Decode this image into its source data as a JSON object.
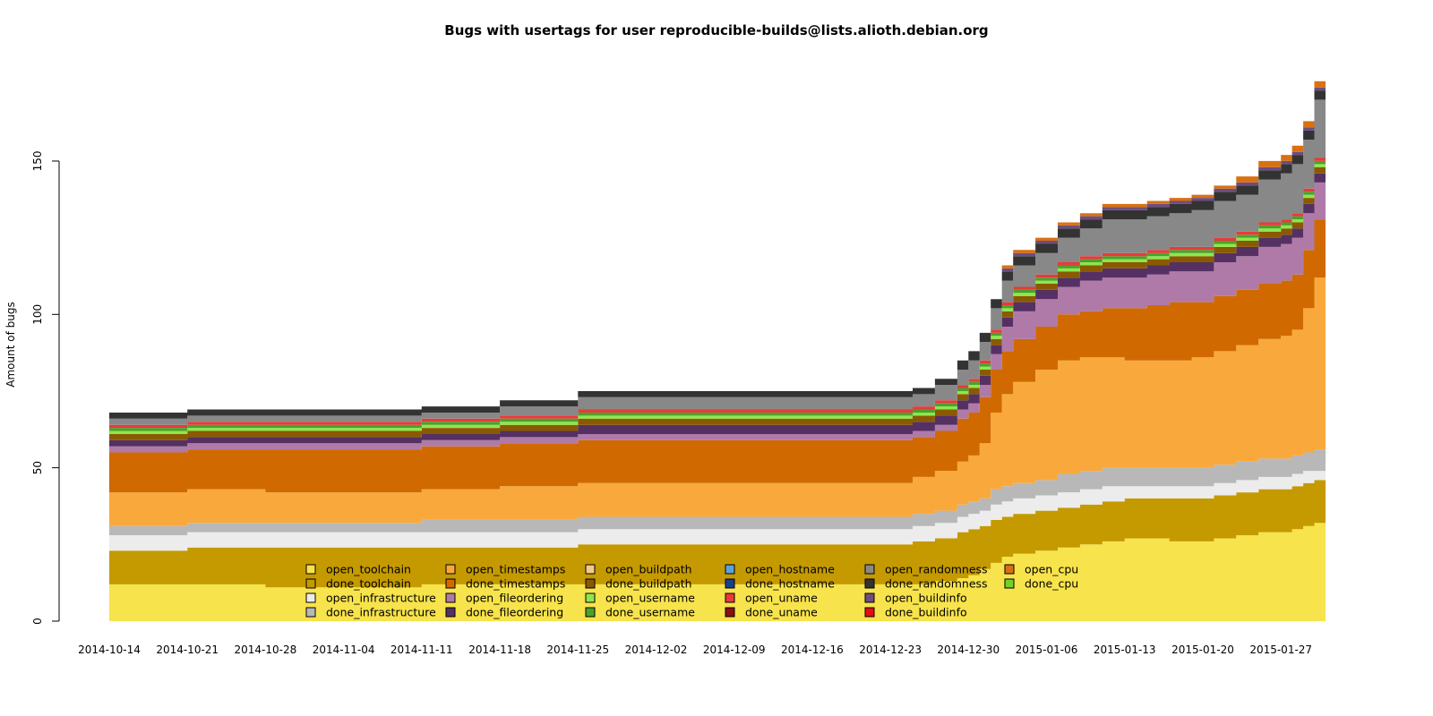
{
  "chart_data": {
    "type": "area",
    "title": "Bugs with usertags for user reproducible-builds@lists.alioth.debian.org",
    "xlabel": "",
    "ylabel": "Amount of bugs",
    "ylim": [
      0,
      185
    ],
    "y_ticks": [
      0,
      50,
      100,
      150
    ],
    "x_tick_labels": [
      "2014-10-14",
      "2014-10-21",
      "2014-10-28",
      "2014-11-04",
      "2014-11-11",
      "2014-11-18",
      "2014-11-25",
      "2014-12-02",
      "2014-12-09",
      "2014-12-16",
      "2014-12-23",
      "2014-12-30",
      "2015-01-06",
      "2015-01-13",
      "2015-01-20",
      "2015-01-27"
    ],
    "grid": false,
    "legend_position": "bottom-center",
    "x": [
      "2014-10-14",
      "2014-10-21",
      "2014-10-28",
      "2014-11-04",
      "2014-11-11",
      "2014-11-18",
      "2014-11-25",
      "2014-12-02",
      "2014-12-09",
      "2014-12-16",
      "2014-12-23",
      "2014-12-25",
      "2014-12-27",
      "2014-12-29",
      "2014-12-30",
      "2014-12-31",
      "2015-01-01",
      "2015-01-02",
      "2015-01-03",
      "2015-01-05",
      "2015-01-07",
      "2015-01-09",
      "2015-01-11",
      "2015-01-13",
      "2015-01-15",
      "2015-01-17",
      "2015-01-19",
      "2015-01-21",
      "2015-01-23",
      "2015-01-25",
      "2015-01-27",
      "2015-01-28",
      "2015-01-29",
      "2015-01-30"
    ],
    "series": [
      {
        "name": "open_toolchain",
        "color": "#f7e34b",
        "values": [
          12,
          12,
          11,
          11,
          12,
          12,
          12,
          12,
          12,
          12,
          12,
          12,
          13,
          14,
          15,
          17,
          19,
          21,
          22,
          23,
          24,
          25,
          26,
          27,
          27,
          26,
          26,
          27,
          28,
          29,
          29,
          30,
          31,
          32
        ]
      },
      {
        "name": "done_toolchain",
        "color": "#c49a00",
        "values": [
          11,
          12,
          13,
          13,
          12,
          12,
          13,
          13,
          13,
          13,
          13,
          14,
          14,
          15,
          15,
          14,
          14,
          13,
          13,
          13,
          13,
          13,
          13,
          13,
          13,
          14,
          14,
          14,
          14,
          14,
          14,
          14,
          14,
          14
        ]
      },
      {
        "name": "open_infrastructure",
        "color": "#ececec",
        "values": [
          5,
          5,
          5,
          5,
          5,
          5,
          5,
          5,
          5,
          5,
          5,
          5,
          5,
          5,
          5,
          5,
          5,
          5,
          5,
          5,
          5,
          5,
          5,
          4,
          4,
          4,
          4,
          4,
          4,
          4,
          4,
          4,
          4,
          3
        ]
      },
      {
        "name": "done_infrastructure",
        "color": "#b8b8b8",
        "values": [
          3,
          3,
          3,
          3,
          4,
          4,
          4,
          4,
          4,
          4,
          4,
          4,
          4,
          4,
          4,
          4,
          5,
          5,
          5,
          5,
          6,
          6,
          6,
          6,
          6,
          6,
          6,
          6,
          6,
          6,
          6,
          6,
          6,
          7
        ]
      },
      {
        "name": "open_timestamps",
        "color": "#f9a93b",
        "values": [
          11,
          11,
          10,
          10,
          10,
          11,
          11,
          11,
          11,
          11,
          11,
          12,
          13,
          14,
          15,
          18,
          25,
          30,
          33,
          36,
          37,
          37,
          36,
          35,
          35,
          35,
          36,
          37,
          38,
          39,
          40,
          41,
          47,
          56
        ]
      },
      {
        "name": "done_timestamps",
        "color": "#d06a00",
        "values": [
          13,
          13,
          14,
          14,
          14,
          14,
          14,
          14,
          14,
          14,
          14,
          13,
          13,
          14,
          14,
          15,
          14,
          14,
          14,
          14,
          15,
          15,
          16,
          17,
          18,
          19,
          18,
          18,
          18,
          18,
          18,
          18,
          19,
          19
        ]
      },
      {
        "name": "open_buildpath",
        "color": "#f5c98b",
        "values": [
          0,
          0,
          0,
          0,
          0,
          0,
          0,
          0,
          0,
          0,
          0,
          0,
          0,
          0,
          0,
          0,
          0,
          0,
          0,
          0,
          0,
          0,
          0,
          0,
          0,
          0,
          0,
          0,
          0,
          0,
          0,
          0,
          0,
          0
        ]
      },
      {
        "name": "open_fileordering",
        "color": "#b07aa8",
        "values": [
          2,
          2,
          2,
          2,
          2,
          2,
          2,
          2,
          2,
          2,
          2,
          2,
          2,
          3,
          3,
          4,
          5,
          8,
          9,
          9,
          9,
          10,
          10,
          10,
          10,
          10,
          10,
          11,
          11,
          12,
          12,
          12,
          12,
          12
        ]
      },
      {
        "name": "done_fileordering",
        "color": "#553063",
        "values": [
          2,
          2,
          2,
          2,
          2,
          2,
          3,
          3,
          3,
          3,
          3,
          3,
          3,
          3,
          3,
          3,
          3,
          3,
          3,
          3,
          3,
          3,
          3,
          3,
          3,
          3,
          3,
          3,
          3,
          3,
          3,
          3,
          3,
          3
        ]
      },
      {
        "name": "done_buildpath",
        "color": "#8a5a00",
        "values": [
          2,
          2,
          2,
          2,
          2,
          2,
          2,
          2,
          2,
          2,
          2,
          2,
          2,
          2,
          2,
          2,
          2,
          2,
          2,
          2,
          2,
          2,
          2,
          2,
          2,
          2,
          2,
          2,
          2,
          2,
          2,
          2,
          2,
          2
        ]
      },
      {
        "name": "open_username",
        "color": "#8ee64f",
        "values": [
          1,
          1,
          1,
          1,
          1,
          1,
          1,
          1,
          1,
          1,
          1,
          1,
          1,
          1,
          1,
          1,
          1,
          1,
          1,
          1,
          1,
          1,
          1,
          1,
          1,
          1,
          1,
          1,
          1,
          1,
          1,
          1,
          1,
          1
        ]
      },
      {
        "name": "done_username",
        "color": "#4aa22a",
        "values": [
          1,
          1,
          1,
          1,
          1,
          1,
          1,
          1,
          1,
          1,
          1,
          1,
          1,
          1,
          1,
          1,
          1,
          1,
          1,
          1,
          1,
          1,
          1,
          1,
          1,
          1,
          1,
          1,
          1,
          1,
          1,
          1,
          1,
          1
        ]
      },
      {
        "name": "open_hostname",
        "color": "#5fa1d9",
        "values": [
          0,
          0,
          0,
          0,
          0,
          0,
          0,
          0,
          0,
          0,
          0,
          0,
          0,
          0,
          0,
          0,
          0,
          0,
          0,
          0,
          0,
          0,
          0,
          0,
          0,
          0,
          0,
          0,
          0,
          0,
          0,
          0,
          0,
          0
        ]
      },
      {
        "name": "done_hostname",
        "color": "#1a3f8a",
        "values": [
          0,
          0,
          0,
          0,
          0,
          0,
          0,
          0,
          0,
          0,
          0,
          0,
          0,
          0,
          0,
          0,
          0,
          0,
          0,
          0,
          0,
          0,
          0,
          0,
          0,
          0,
          0,
          0,
          0,
          0,
          0,
          0,
          0,
          0
        ]
      },
      {
        "name": "open_uname",
        "color": "#e83a3a",
        "values": [
          1,
          1,
          1,
          1,
          1,
          1,
          1,
          1,
          1,
          1,
          1,
          1,
          1,
          1,
          1,
          1,
          1,
          1,
          1,
          1,
          1,
          1,
          1,
          1,
          1,
          1,
          1,
          1,
          1,
          1,
          1,
          1,
          1,
          1
        ]
      },
      {
        "name": "done_uname",
        "color": "#8a1010",
        "values": [
          0,
          0,
          0,
          0,
          0,
          0,
          0,
          0,
          0,
          0,
          0,
          0,
          0,
          0,
          0,
          0,
          0,
          0,
          0,
          0,
          0,
          0,
          0,
          0,
          0,
          0,
          0,
          0,
          0,
          0,
          0,
          0,
          0,
          0
        ]
      },
      {
        "name": "open_randomness",
        "color": "#888888",
        "values": [
          2,
          2,
          2,
          2,
          2,
          3,
          4,
          4,
          4,
          4,
          4,
          4,
          5,
          5,
          6,
          6,
          7,
          7,
          7,
          7,
          8,
          9,
          11,
          11,
          11,
          11,
          12,
          12,
          12,
          14,
          15,
          16,
          16,
          19
        ]
      },
      {
        "name": "done_randomness",
        "color": "#333333",
        "values": [
          2,
          2,
          2,
          2,
          2,
          2,
          2,
          2,
          2,
          2,
          2,
          2,
          2,
          3,
          3,
          3,
          3,
          3,
          3,
          3,
          3,
          3,
          3,
          3,
          3,
          3,
          3,
          3,
          3,
          3,
          3,
          3,
          3,
          3
        ]
      },
      {
        "name": "open_buildinfo",
        "color": "#6d4d80",
        "values": [
          0,
          0,
          0,
          0,
          0,
          0,
          0,
          0,
          0,
          0,
          0,
          0,
          0,
          0,
          0,
          0,
          0,
          1,
          1,
          1,
          1,
          1,
          1,
          1,
          1,
          1,
          1,
          1,
          1,
          1,
          1,
          1,
          1,
          1
        ]
      },
      {
        "name": "done_buildinfo",
        "color": "#e41010",
        "values": [
          0,
          0,
          0,
          0,
          0,
          0,
          0,
          0,
          0,
          0,
          0,
          0,
          0,
          0,
          0,
          0,
          0,
          0,
          0,
          0,
          0,
          0,
          0,
          0,
          0,
          0,
          0,
          0,
          0,
          0,
          0,
          0,
          0,
          0
        ]
      },
      {
        "name": "open_cpu",
        "color": "#d97012",
        "values": [
          0,
          0,
          0,
          0,
          0,
          0,
          0,
          0,
          0,
          0,
          0,
          0,
          0,
          0,
          0,
          0,
          0,
          1,
          1,
          1,
          1,
          1,
          1,
          1,
          1,
          1,
          1,
          1,
          2,
          2,
          2,
          2,
          2,
          2
        ]
      },
      {
        "name": "done_cpu",
        "color": "#73d12a",
        "values": [
          0,
          0,
          0,
          0,
          0,
          0,
          0,
          0,
          0,
          0,
          0,
          0,
          0,
          0,
          0,
          0,
          0,
          0,
          0,
          0,
          0,
          0,
          0,
          0,
          0,
          0,
          0,
          0,
          0,
          0,
          0,
          0,
          0,
          0
        ]
      }
    ],
    "legend": {
      "columns": [
        [
          "open_toolchain",
          "done_toolchain",
          "open_infrastructure",
          "done_infrastructure"
        ],
        [
          "open_timestamps",
          "done_timestamps",
          "open_fileordering",
          "done_fileordering"
        ],
        [
          "open_buildpath",
          "done_buildpath",
          "open_username",
          "done_username"
        ],
        [
          "open_hostname",
          "done_hostname",
          "open_uname",
          "done_uname"
        ],
        [
          "open_randomness",
          "done_randomness",
          "open_buildinfo",
          "done_buildinfo"
        ],
        [
          "open_cpu",
          "done_cpu"
        ]
      ]
    }
  }
}
